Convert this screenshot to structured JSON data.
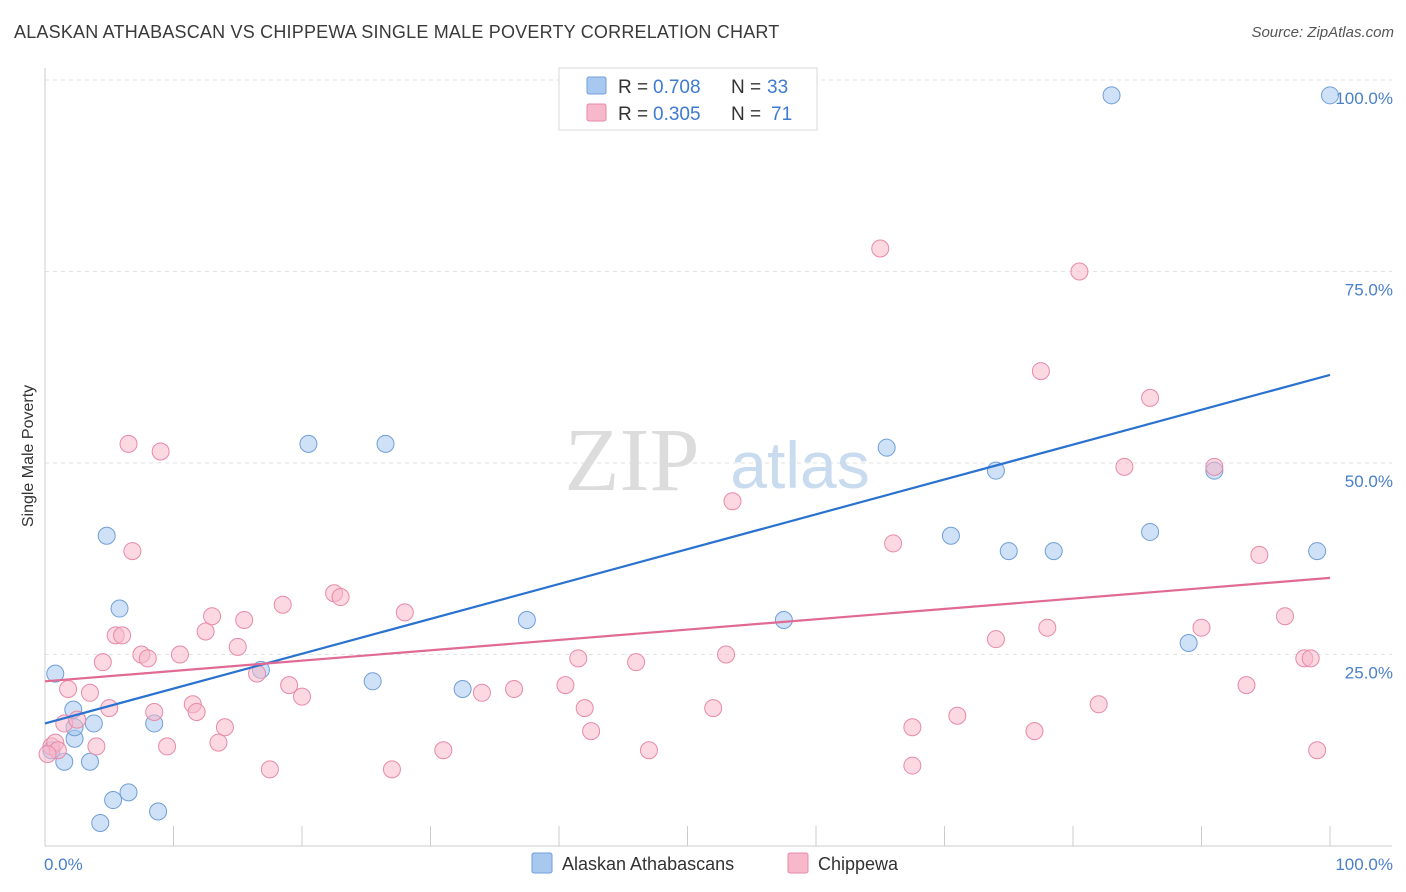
{
  "title": "ALASKAN ATHABASCAN VS CHIPPEWA SINGLE MALE POVERTY CORRELATION CHART",
  "source": "Source: ZipAtlas.com",
  "watermark": {
    "zip": "ZIP",
    "atlas": "atlas"
  },
  "legend_top": [
    {
      "r_label": "R =",
      "r_value": "0.708",
      "n_label": "N =",
      "n_value": "33",
      "color": "#a8c8f0"
    },
    {
      "r_label": "R =",
      "r_value": "0.305",
      "n_label": "N =",
      "n_value": "71",
      "color": "#f7b8cb"
    }
  ],
  "chart_data": {
    "type": "scatter",
    "title": "ALASKAN ATHABASCAN VS CHIPPEWA SINGLE MALE POVERTY CORRELATION CHART",
    "xlabel": "",
    "ylabel": "Single Male Poverty",
    "xlim": [
      0,
      100
    ],
    "ylim": [
      0,
      100
    ],
    "x_tick_labels": [
      "0.0%",
      "100.0%"
    ],
    "y_ticks": [
      25,
      50,
      75,
      100
    ],
    "y_tick_labels": [
      "25.0%",
      "50.0%",
      "75.0%",
      "100.0%"
    ],
    "grid": true,
    "legend_position": "bottom-center",
    "series": [
      {
        "name": "Alaskan Athabascans",
        "color": "#a8c8f0",
        "stroke": "#6f9fd8",
        "line_color": "#2a72d0",
        "trend": [
          [
            0,
            16
          ],
          [
            100,
            61.5
          ]
        ],
        "points": [
          [
            0.5,
            12.5
          ],
          [
            0.8,
            22.5
          ],
          [
            1.5,
            11
          ],
          [
            2.2,
            17.8
          ],
          [
            2.3,
            14
          ],
          [
            2.3,
            15.5
          ],
          [
            3.5,
            11
          ],
          [
            3.8,
            16
          ],
          [
            4.3,
            3
          ],
          [
            4.8,
            40.5
          ],
          [
            5.3,
            6
          ],
          [
            5.8,
            31
          ],
          [
            6.5,
            7
          ],
          [
            8.5,
            16
          ],
          [
            8.8,
            4.5
          ],
          [
            16.8,
            23
          ],
          [
            20.5,
            52.5
          ],
          [
            25.5,
            21.5
          ],
          [
            26.5,
            52.5
          ],
          [
            32.5,
            20.5
          ],
          [
            37.5,
            29.5
          ],
          [
            57.5,
            29.5
          ],
          [
            65.5,
            52
          ],
          [
            70.5,
            40.5
          ],
          [
            74,
            49
          ],
          [
            75,
            38.5
          ],
          [
            78.5,
            38.5
          ],
          [
            83,
            98
          ],
          [
            86,
            41
          ],
          [
            89,
            26.5
          ],
          [
            91,
            49
          ],
          [
            99,
            38.5
          ],
          [
            100,
            98
          ]
        ]
      },
      {
        "name": "Chippewa",
        "color": "#f7b8cb",
        "stroke": "#e88aa8",
        "line_color": "#e06a94",
        "trend": [
          [
            0,
            21.5
          ],
          [
            100,
            35
          ]
        ],
        "points": [
          [
            0.5,
            13
          ],
          [
            0.8,
            13.5
          ],
          [
            1.0,
            12.5
          ],
          [
            1.5,
            16
          ],
          [
            1.8,
            20.5
          ],
          [
            2.5,
            16.5
          ],
          [
            3.5,
            20
          ],
          [
            4.0,
            13
          ],
          [
            4.5,
            24
          ],
          [
            5.0,
            18
          ],
          [
            5.5,
            27.5
          ],
          [
            6.0,
            27.5
          ],
          [
            6.5,
            52.5
          ],
          [
            6.8,
            38.5
          ],
          [
            7.5,
            25
          ],
          [
            8.0,
            24.5
          ],
          [
            8.5,
            17.5
          ],
          [
            9.0,
            51.5
          ],
          [
            9.5,
            13
          ],
          [
            10.5,
            25
          ],
          [
            11.5,
            18.5
          ],
          [
            11.8,
            17.5
          ],
          [
            12.5,
            28
          ],
          [
            13,
            30
          ],
          [
            13.5,
            13.5
          ],
          [
            14,
            15.5
          ],
          [
            15,
            26
          ],
          [
            15.5,
            29.5
          ],
          [
            16.5,
            22.5
          ],
          [
            17.5,
            10
          ],
          [
            18.5,
            31.5
          ],
          [
            19,
            21
          ],
          [
            20,
            19.5
          ],
          [
            22.5,
            33
          ],
          [
            23,
            32.5
          ],
          [
            27,
            10
          ],
          [
            28,
            30.5
          ],
          [
            31,
            12.5
          ],
          [
            34,
            20
          ],
          [
            36.5,
            20.5
          ],
          [
            40.5,
            21
          ],
          [
            41.5,
            24.5
          ],
          [
            42,
            18
          ],
          [
            42.5,
            15
          ],
          [
            46,
            24
          ],
          [
            47,
            12.5
          ],
          [
            52,
            18
          ],
          [
            53,
            25
          ],
          [
            53.5,
            45
          ],
          [
            65,
            78
          ],
          [
            66,
            39.5
          ],
          [
            67.5,
            10.5
          ],
          [
            67.5,
            15.5
          ],
          [
            71,
            17
          ],
          [
            74,
            27
          ],
          [
            77,
            15
          ],
          [
            77.5,
            62
          ],
          [
            78,
            28.5
          ],
          [
            80.5,
            75
          ],
          [
            82,
            18.5
          ],
          [
            84,
            49.5
          ],
          [
            86,
            58.5
          ],
          [
            90,
            28.5
          ],
          [
            91,
            49.5
          ],
          [
            93.5,
            21
          ],
          [
            94.5,
            38
          ],
          [
            96.5,
            30
          ],
          [
            98,
            24.5
          ],
          [
            98.5,
            24.5
          ],
          [
            99,
            12.5
          ],
          [
            0.2,
            12
          ]
        ]
      }
    ]
  }
}
